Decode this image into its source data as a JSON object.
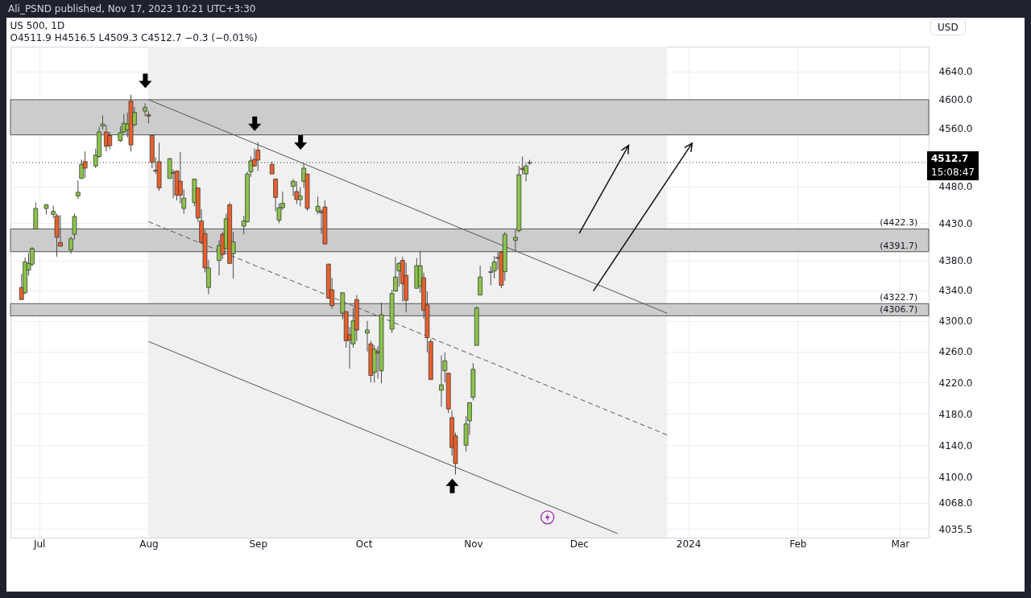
{
  "chart_data": {
    "type": "candlestick",
    "title": "US 500, 1D",
    "subtitle": "O4511.9  H4516.5  L4509.3  C4512.7  −0.3 (−0.01%)",
    "x": [
      "2023-06-26",
      "2023-06-27",
      "2023-06-28",
      "2023-06-29",
      "2023-06-30",
      "2023-07-03",
      "2023-07-05",
      "2023-07-06",
      "2023-07-07",
      "2023-07-10",
      "2023-07-11",
      "2023-07-12",
      "2023-07-13",
      "2023-07-14",
      "2023-07-17",
      "2023-07-18",
      "2023-07-19",
      "2023-07-20",
      "2023-07-21",
      "2023-07-24",
      "2023-07-25",
      "2023-07-26",
      "2023-07-27",
      "2023-07-28",
      "2023-07-31",
      "2023-08-01",
      "2023-08-02",
      "2023-08-03",
      "2023-08-04",
      "2023-08-07",
      "2023-08-08",
      "2023-08-09",
      "2023-08-10",
      "2023-08-11",
      "2023-08-14",
      "2023-08-15",
      "2023-08-16",
      "2023-08-17",
      "2023-08-18",
      "2023-08-21",
      "2023-08-22",
      "2023-08-23",
      "2023-08-24",
      "2023-08-25",
      "2023-08-28",
      "2023-08-29",
      "2023-08-30",
      "2023-08-31",
      "2023-09-01",
      "2023-09-05",
      "2023-09-06",
      "2023-09-07",
      "2023-09-08",
      "2023-09-11",
      "2023-09-12",
      "2023-09-13",
      "2023-09-14",
      "2023-09-15",
      "2023-09-18",
      "2023-09-19",
      "2023-09-20",
      "2023-09-21",
      "2023-09-22",
      "2023-09-25",
      "2023-09-26",
      "2023-09-27",
      "2023-09-28",
      "2023-09-29",
      "2023-10-02",
      "2023-10-03",
      "2023-10-04",
      "2023-10-05",
      "2023-10-06",
      "2023-10-09",
      "2023-10-10",
      "2023-10-11",
      "2023-10-12",
      "2023-10-13",
      "2023-10-16",
      "2023-10-17",
      "2023-10-18",
      "2023-10-19",
      "2023-10-20",
      "2023-10-23",
      "2023-10-24",
      "2023-10-25",
      "2023-10-26",
      "2023-10-27",
      "2023-10-30",
      "2023-10-31",
      "2023-11-01",
      "2023-11-02",
      "2023-11-03",
      "2023-11-06",
      "2023-11-07",
      "2023-11-08",
      "2023-11-09",
      "2023-11-10",
      "2023-11-13",
      "2023-11-14",
      "2023-11-15",
      "2023-11-16",
      "2023-11-17"
    ],
    "ohlc": [
      [
        4344,
        4362,
        4328,
        4328
      ],
      [
        4337,
        4384,
        4335,
        4378
      ],
      [
        4367,
        4390,
        4360,
        4376
      ],
      [
        4375,
        4398,
        4372,
        4396
      ],
      [
        4422,
        4458,
        4422,
        4450
      ],
      [
        4450,
        4456,
        4442,
        4455
      ],
      [
        4442,
        4454,
        4437,
        4446
      ],
      [
        4440,
        4443,
        4385,
        4411
      ],
      [
        4404,
        4441,
        4399,
        4399
      ],
      [
        4394,
        4412,
        4389,
        4409
      ],
      [
        4415,
        4443,
        4408,
        4439
      ],
      [
        4467,
        4488,
        4463,
        4472
      ],
      [
        4491,
        4517,
        4490,
        4510
      ],
      [
        4514,
        4528,
        4492,
        4505
      ],
      [
        4508,
        4532,
        4505,
        4523
      ],
      [
        4521,
        4562,
        4519,
        4555
      ],
      [
        4563,
        4578,
        4558,
        4566
      ],
      [
        4555,
        4565,
        4528,
        4535
      ],
      [
        4550,
        4555,
        4531,
        4536
      ],
      [
        4543,
        4563,
        4541,
        4554
      ],
      [
        4555,
        4580,
        4553,
        4567
      ],
      [
        4558,
        4582,
        4547,
        4566
      ],
      [
        4598,
        4607,
        4528,
        4537
      ],
      [
        4565,
        4590,
        4563,
        4582
      ],
      [
        4584,
        4595,
        4577,
        4589
      ],
      [
        4579,
        4584,
        4567,
        4577
      ],
      [
        4550,
        4550,
        4505,
        4513
      ],
      [
        4502,
        4520,
        4497,
        4501
      ],
      [
        4514,
        4540,
        4474,
        4478
      ],
      [
        4491,
        4519,
        4491,
        4518
      ],
      [
        4498,
        4503,
        4464,
        4499
      ],
      [
        4501,
        4502,
        4461,
        4468
      ],
      [
        4487,
        4527,
        4457,
        4468
      ],
      [
        4450,
        4476,
        4443,
        4464
      ],
      [
        4458,
        4490,
        4453,
        4490
      ],
      [
        4478,
        4478,
        4432,
        4437
      ],
      [
        4433,
        4449,
        4404,
        4404
      ],
      [
        4416,
        4421,
        4364,
        4370
      ],
      [
        4344,
        4381,
        4335,
        4370
      ],
      [
        4380,
        4407,
        4360,
        4400
      ],
      [
        4415,
        4418,
        4382,
        4388
      ],
      [
        4396,
        4443,
        4396,
        4436
      ],
      [
        4455,
        4458,
        4376,
        4376
      ],
      [
        4389,
        4418,
        4356,
        4405
      ],
      [
        4426,
        4440,
        4415,
        4433
      ],
      [
        4432,
        4500,
        4431,
        4497
      ],
      [
        4500,
        4521,
        4493,
        4515
      ],
      [
        4517,
        4532,
        4507,
        4508
      ],
      [
        4530,
        4541,
        4501,
        4516
      ],
      [
        4510,
        4514,
        4497,
        4497
      ],
      [
        4490,
        4491,
        4446,
        4465
      ],
      [
        4434,
        4457,
        4430,
        4451
      ],
      [
        4451,
        4473,
        4448,
        4457
      ],
      [
        4480,
        4490,
        4467,
        4487
      ],
      [
        4473,
        4487,
        4456,
        4462
      ],
      [
        4462,
        4479,
        4453,
        4467
      ],
      [
        4487,
        4511,
        4478,
        4505
      ],
      [
        4497,
        4497,
        4447,
        4450
      ],
      [
        4446,
        4466,
        4442,
        4453
      ],
      [
        4446,
        4449,
        4416,
        4444
      ],
      [
        4452,
        4461,
        4402,
        4402
      ],
      [
        4375,
        4376,
        4329,
        4330
      ],
      [
        4341,
        4357,
        4316,
        4320
      ],
      [
        4310,
        4338,
        4302,
        4337
      ],
      [
        4312,
        4313,
        4265,
        4274
      ],
      [
        4282,
        4292,
        4238,
        4275
      ],
      [
        4270,
        4317,
        4265,
        4300
      ],
      [
        4328,
        4334,
        4274,
        4288
      ],
      [
        4284,
        4300,
        4260,
        4288
      ],
      [
        4270,
        4274,
        4220,
        4229
      ],
      [
        4233,
        4268,
        4220,
        4263
      ],
      [
        4260,
        4267,
        4225,
        4258
      ],
      [
        4235,
        4324,
        4219,
        4308
      ],
      [
        4289,
        4341,
        4284,
        4336
      ],
      [
        4339,
        4385,
        4339,
        4358
      ],
      [
        4366,
        4378,
        4345,
        4376
      ],
      [
        4380,
        4385,
        4325,
        4349
      ],
      [
        4360,
        4377,
        4311,
        4327
      ],
      [
        4343,
        4383,
        4343,
        4373
      ],
      [
        4346,
        4393,
        4337,
        4373
      ],
      [
        4357,
        4364,
        4303,
        4314
      ],
      [
        4321,
        4339,
        4259,
        4278
      ],
      [
        4273,
        4276,
        4223,
        4224
      ],
      [
        4210,
        4255,
        4189,
        4217
      ],
      [
        4235,
        4259,
        4220,
        4248
      ],
      [
        4232,
        4232,
        4181,
        4186
      ],
      [
        4175,
        4184,
        4127,
        4137
      ],
      [
        4152,
        4156,
        4103,
        4117
      ],
      [
        4140,
        4177,
        4132,
        4167
      ],
      [
        4171,
        4195,
        4153,
        4194
      ],
      [
        4201,
        4245,
        4197,
        4237
      ],
      [
        4268,
        4319,
        4268,
        4317
      ],
      [
        4334,
        4373,
        4334,
        4358
      ],
      [
        4364,
        4372,
        4347,
        4365
      ],
      [
        4366,
        4386,
        4356,
        4378
      ],
      [
        4384,
        4391,
        4368,
        4383
      ],
      [
        4391,
        4393,
        4343,
        4347
      ],
      [
        4365,
        4418,
        4353,
        4415
      ],
      [
        4407,
        4421,
        4393,
        4411
      ],
      [
        4420,
        4508,
        4418,
        4496
      ],
      [
        4505,
        4521,
        4496,
        4503
      ],
      [
        4497,
        4511,
        4487,
        4508
      ],
      [
        4511.9,
        4516.5,
        4509.3,
        4512.7
      ]
    ],
    "colors": [
      "#e8602c",
      "#8bc34a",
      "#8bc34a",
      "#8bc34a",
      "#8bc34a",
      "#8bc34a",
      "#8bc34a",
      "#e8602c",
      "#e8602c",
      "#8bc34a",
      "#8bc34a",
      "#8bc34a",
      "#8bc34a",
      "#e8602c",
      "#8bc34a",
      "#8bc34a",
      "#8bc34a",
      "#e8602c",
      "#e8602c",
      "#8bc34a",
      "#8bc34a",
      "#8bc34a",
      "#e8602c",
      "#8bc34a",
      "#8bc34a",
      "#e8602c",
      "#e8602c",
      "#e8602c",
      "#e8602c",
      "#8bc34a",
      "#8bc34a",
      "#e8602c",
      "#e8602c",
      "#8bc34a",
      "#8bc34a",
      "#e8602c",
      "#e8602c",
      "#e8602c",
      "#8bc34a",
      "#8bc34a",
      "#e8602c",
      "#8bc34a",
      "#e8602c",
      "#8bc34a",
      "#8bc34a",
      "#8bc34a",
      "#8bc34a",
      "#e8602c",
      "#e8602c",
      "#e8602c",
      "#e8602c",
      "#8bc34a",
      "#8bc34a",
      "#8bc34a",
      "#e8602c",
      "#8bc34a",
      "#8bc34a",
      "#e8602c",
      "#8bc34a",
      "#e8602c",
      "#e8602c",
      "#e8602c",
      "#e8602c",
      "#8bc34a",
      "#e8602c",
      "#e8602c",
      "#8bc34a",
      "#e8602c",
      "#8bc34a",
      "#e8602c",
      "#8bc34a",
      "#e8602c",
      "#8bc34a",
      "#8bc34a",
      "#8bc34a",
      "#8bc34a",
      "#e8602c",
      "#e8602c",
      "#8bc34a",
      "#8bc34a",
      "#e8602c",
      "#e8602c",
      "#e8602c",
      "#8bc34a",
      "#8bc34a",
      "#e8602c",
      "#e8602c",
      "#e8602c",
      "#8bc34a",
      "#8bc34a",
      "#8bc34a",
      "#8bc34a",
      "#8bc34a",
      "#8bc34a",
      "#8bc34a",
      "#e8602c",
      "#e8602c",
      "#8bc34a",
      "#8bc34a",
      "#8bc34a",
      "#e8602c",
      "#8bc34a",
      "#8bc34a"
    ],
    "series": [
      {
        "type": "line",
        "x": [
          "2023-08-01",
          "2023-12-26"
        ],
        "values": [
          4600,
          4310
        ],
        "color": "#555555",
        "line_style": "solid"
      },
      {
        "type": "line",
        "x": [
          "2023-08-01",
          "2023-12-26"
        ],
        "values": [
          4432,
          4153
        ],
        "color": "#555555",
        "line_style": "dashed"
      },
      {
        "type": "line",
        "x": [
          "2023-08-01",
          "2023-12-12"
        ],
        "values": [
          4273,
          4030
        ],
        "color": "#555555",
        "line_style": "solid"
      }
    ],
    "xlim": [
      "2023-06-24",
      "2024-03-08"
    ],
    "xticks": [
      {
        "value": "2023-07-01",
        "label": "Jul"
      },
      {
        "value": "2023-08-01",
        "label": "Aug"
      },
      {
        "value": "2023-09-01",
        "label": "Sep"
      },
      {
        "value": "2023-10-01",
        "label": "Oct"
      },
      {
        "value": "2023-11-01",
        "label": "Nov"
      },
      {
        "value": "2023-12-01",
        "label": "Dec"
      },
      {
        "value": "2024-01-01",
        "label": "2024"
      },
      {
        "value": "2024-02-01",
        "label": "Feb"
      },
      {
        "value": "2024-03-01",
        "label": "Mar"
      }
    ],
    "ylim": [
      4025,
      4675
    ],
    "yticks": [
      {
        "value": 4035.5,
        "label": "4035.5"
      },
      {
        "value": 4068,
        "label": "4068.0"
      },
      {
        "value": 4100,
        "label": "4100.0"
      },
      {
        "value": 4140,
        "label": "4140.0"
      },
      {
        "value": 4180,
        "label": "4180.0"
      },
      {
        "value": 4220,
        "label": "4220.0"
      },
      {
        "value": 4260,
        "label": "4260.0"
      },
      {
        "value": 4300,
        "label": "4300.0"
      },
      {
        "value": 4340,
        "label": "4340.0"
      },
      {
        "value": 4380,
        "label": "4380.0"
      },
      {
        "value": 4430,
        "label": "4430.0"
      },
      {
        "value": 4480,
        "label": "4480.0"
      },
      {
        "value": 4560,
        "label": "4560.0"
      },
      {
        "value": 4600,
        "label": "4600.0"
      },
      {
        "value": 4640,
        "label": "4640.0"
      }
    ],
    "log": "y",
    "grid": true,
    "bands": [
      {
        "axis": "x",
        "from": "2023-08-01",
        "to": "2023-12-26",
        "color": "#f0f0f0"
      },
      {
        "axis": "y",
        "from": 4551,
        "to": 4600,
        "color": "#cccccc"
      },
      {
        "axis": "y",
        "from": 4391.7,
        "to": 4422.3,
        "color": "#cccccc"
      },
      {
        "axis": "y",
        "from": 4306.7,
        "to": 4322.7,
        "color": "#cccccc"
      }
    ],
    "ref_lines": [
      {
        "axis": "y",
        "value": 4512.7,
        "label": "4512.7",
        "line_style": "dotted",
        "color": "#333333"
      }
    ],
    "annotations": [
      "Ali_PSND published, Nov 17, 2023 10:21 UTC+3:30",
      "USD",
      "15:08:47",
      {
        "text": "(4422.3)",
        "x": "2024-03-06",
        "y": 4422.3
      },
      {
        "text": "(4391.7)",
        "x": "2024-03-06",
        "y": 4391.7
      },
      {
        "text": "(4322.7)",
        "x": "2024-03-06",
        "y": 4322.7
      },
      {
        "text": "(4306.7)",
        "x": "2024-03-06",
        "y": 4306.7
      }
    ]
  }
}
